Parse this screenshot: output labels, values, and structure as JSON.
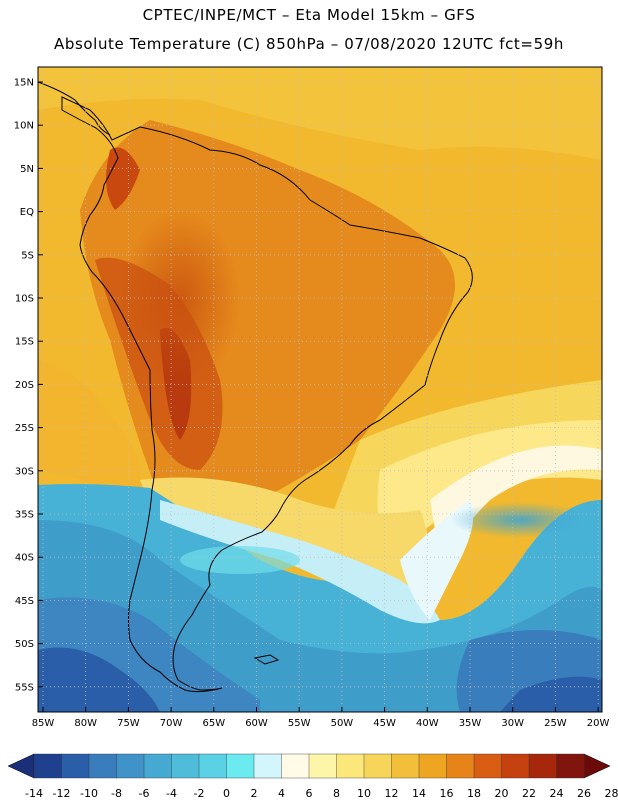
{
  "header": {
    "line1": "CPTEC/INPE/MCT –  Eta Model 15km – GFS",
    "line2": "Absolute Temperature (C) 850hPa – 07/08/2020 12UTC fct=59h"
  },
  "axes": {
    "lat_labels": [
      "15N",
      "10N",
      "5N",
      "EQ",
      "5S",
      "10S",
      "15S",
      "20S",
      "25S",
      "30S",
      "35S",
      "40S",
      "45S",
      "50S",
      "55S"
    ],
    "lon_labels": [
      "85W",
      "80W",
      "75W",
      "70W",
      "65W",
      "60W",
      "55W",
      "50W",
      "45W",
      "40W",
      "35W",
      "30W",
      "25W",
      "20W"
    ]
  },
  "colorbar": {
    "colors": [
      "#1f3f8f",
      "#2b5ea8",
      "#3a7dbc",
      "#3f93c8",
      "#45a9d2",
      "#4fbcda",
      "#5ad1e4",
      "#6beaf0",
      "#d2f6fb",
      "#fffbe6",
      "#fdf5a8",
      "#fbe77a",
      "#f7d55b",
      "#f3bf3a",
      "#eea522",
      "#e6841a",
      "#d95d12",
      "#c5410f",
      "#a6270c",
      "#7f150c"
    ],
    "ticks": [
      "-14",
      "-12",
      "-10",
      "-8",
      "-6",
      "-4",
      "-2",
      "0",
      "2",
      "4",
      "6",
      "8",
      "10",
      "12",
      "14",
      "16",
      "18",
      "20",
      "22",
      "24",
      "26",
      "28"
    ],
    "low_color": "#1a2f78",
    "high_color": "#6b0a08"
  }
}
